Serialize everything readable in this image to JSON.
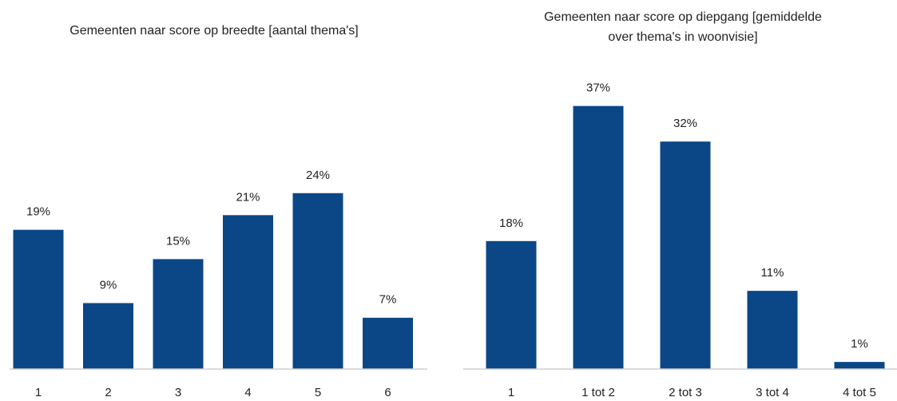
{
  "chart_data": [
    {
      "type": "bar",
      "title": "Gemeenten naar score op breedte [aantal thema's]",
      "categories": [
        "1",
        "2",
        "3",
        "4",
        "5",
        "6"
      ],
      "values": [
        19,
        9,
        15,
        21,
        24,
        7
      ],
      "value_labels": [
        "19%",
        "9%",
        "15%",
        "21%",
        "24%",
        "7%"
      ],
      "color": "#0b4787",
      "ylim": [
        0,
        40
      ]
    },
    {
      "type": "bar",
      "title": "Gemeenten naar score op diepgang [gemiddelde over thema's in woonvisie]",
      "categories": [
        "1",
        "1 tot 2",
        "2 tot 3",
        "3 tot 4",
        "4 tot 5"
      ],
      "values": [
        18,
        37,
        32,
        11,
        1
      ],
      "value_labels": [
        "18%",
        "37%",
        "32%",
        "11%",
        "1%"
      ],
      "color": "#0b4787",
      "ylim": [
        0,
        40
      ]
    }
  ]
}
